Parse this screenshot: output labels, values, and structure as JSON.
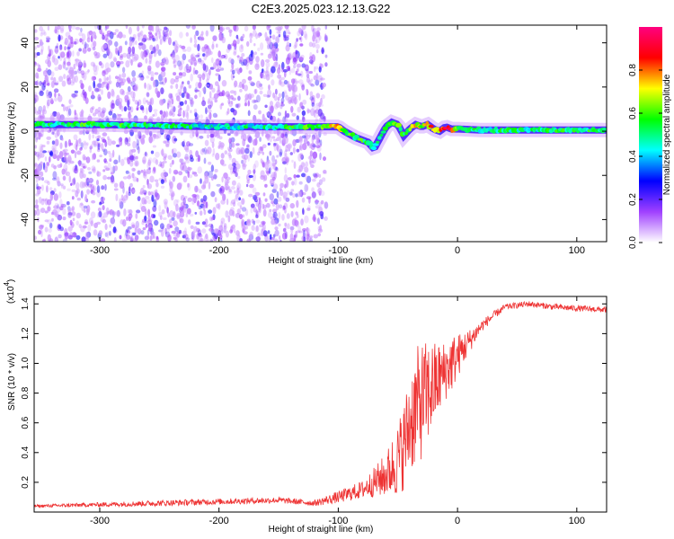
{
  "title": "C2E3.2025.023.12.13.G22",
  "chart_data": [
    {
      "type": "heatmap",
      "title": "C2E3.2025.023.12.13.G22",
      "xlabel": "Height of straight line (km)",
      "ylabel": "Frequency (Hz)",
      "xlim": [
        -355,
        125
      ],
      "ylim": [
        -50,
        48
      ],
      "xticks": [
        "-300",
        "-200",
        "-100",
        "0",
        "100"
      ],
      "yticks": [
        "40",
        "20",
        "0",
        "-20",
        "-40"
      ],
      "colorbar": {
        "label": "Normalized spectral amplitude",
        "range": [
          0.0,
          1.0
        ],
        "ticks": [
          "0.0",
          "0.2",
          "0.4",
          "0.6",
          "0.8"
        ],
        "colors": [
          "#ffffff",
          "#a040ff",
          "#0000ff",
          "#00ffff",
          "#00ff00",
          "#ffff00",
          "#ff0000",
          "#ff0080"
        ]
      },
      "ridge": {
        "x": [
          -355,
          -300,
          -250,
          -200,
          -150,
          -110,
          -100,
          -95,
          -85,
          -75,
          -70,
          -65,
          -60,
          -55,
          -50,
          -45,
          -40,
          -35,
          -30,
          -25,
          -20,
          -15,
          -10,
          -5,
          0,
          20,
          50,
          80,
          100,
          125
        ],
        "y": [
          3,
          3,
          2.5,
          2,
          2,
          2,
          2,
          0,
          -3,
          -5,
          -8,
          -3,
          2,
          4,
          3,
          -2,
          1,
          3,
          2,
          3,
          1,
          0,
          2,
          1,
          1,
          0.5,
          0.5,
          0.5,
          0.5,
          0.5
        ],
        "amplitude": [
          0.5,
          0.55,
          0.5,
          0.45,
          0.5,
          0.6,
          0.85,
          0.6,
          0.55,
          0.55,
          0.5,
          0.45,
          0.5,
          0.55,
          0.6,
          0.55,
          0.6,
          0.7,
          0.65,
          0.7,
          0.8,
          0.75,
          0.9,
          0.85,
          0.6,
          0.5,
          0.5,
          0.5,
          0.55,
          0.5
        ]
      },
      "noise_region_x": [
        -355,
        -110
      ]
    },
    {
      "type": "line",
      "xlabel": "Height of straight line (km)",
      "ylabel": "SNR (10 * v/v)",
      "y_multiplier": "(x10",
      "y_multiplier_exp": "4",
      "xlim": [
        -355,
        125
      ],
      "ylim": [
        0,
        1.45
      ],
      "xticks": [
        "-300",
        "-200",
        "-100",
        "0",
        "100"
      ],
      "yticks": [
        "1.4",
        "1.2",
        "1.0",
        "0.8",
        "0.6",
        "0.4",
        "0.2"
      ],
      "series": [
        {
          "color": "#ee3333",
          "x": [
            -355,
            -300,
            -250,
            -200,
            -150,
            -120,
            -100,
            -80,
            -70,
            -60,
            -50,
            -45,
            -40,
            -35,
            -30,
            -25,
            -20,
            -15,
            -10,
            -5,
            0,
            10,
            20,
            30,
            40,
            60,
            80,
            100,
            125
          ],
          "y": [
            0.04,
            0.05,
            0.06,
            0.07,
            0.08,
            0.06,
            0.1,
            0.15,
            0.2,
            0.25,
            0.35,
            0.45,
            0.6,
            0.7,
            0.75,
            0.8,
            0.85,
            0.9,
            0.95,
            1.0,
            1.05,
            1.15,
            1.25,
            1.32,
            1.38,
            1.4,
            1.38,
            1.37,
            1.36
          ],
          "noise": [
            0.01,
            0.015,
            0.02,
            0.02,
            0.02,
            0.02,
            0.04,
            0.06,
            0.1,
            0.15,
            0.25,
            0.3,
            0.35,
            0.4,
            0.4,
            0.35,
            0.3,
            0.25,
            0.2,
            0.2,
            0.15,
            0.08,
            0.04,
            0.03,
            0.02,
            0.02,
            0.02,
            0.02,
            0.02
          ]
        }
      ]
    }
  ]
}
